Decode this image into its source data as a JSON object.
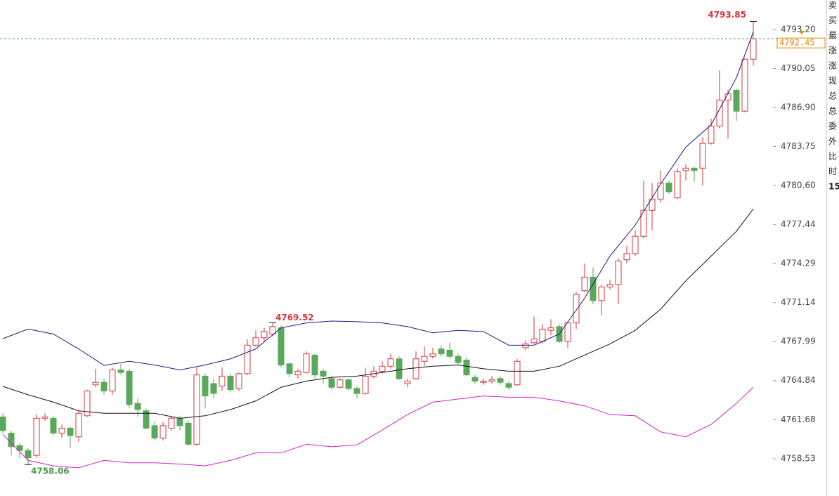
{
  "chart_data": {
    "type": "candlestick",
    "up_color": "#d9363e",
    "down_color": "#5aa85a",
    "open": [
      4761.9,
      4760.6,
      4759.6,
      4759.2,
      4758.8,
      4761.8,
      4761.8,
      4760.6,
      4761.0,
      4760.3,
      4762.0,
      4764.5,
      4764.7,
      4764.0,
      4765.7,
      4765.6,
      4763.0,
      4762.4,
      4761.2,
      4760.2,
      4761.0,
      4761.8,
      4761.4,
      4759.7,
      4765.2,
      4764.6,
      4764.4,
      4765.2,
      4764.2,
      4765.4,
      4767.7,
      4768.3,
      4768.6,
      4769.1,
      4766.2,
      4765.3,
      4765.5,
      4766.9,
      4765.6,
      4765.0,
      4764.3,
      4764.9,
      4764.2,
      4763.8,
      4765.2,
      4765.6,
      4766.0,
      4766.6,
      4764.6,
      4765.0,
      4766.4,
      4766.8,
      4767.4,
      4767.3,
      4766.8,
      4766.5,
      4765.1,
      4764.7,
      4764.8,
      4765.0,
      4764.6,
      4764.5,
      4767.5,
      4767.9,
      4768.0,
      4768.9,
      4769.2,
      4768.0,
      4769.5,
      4772.1,
      4773.2,
      4771.3,
      4772.4,
      4772.6,
      4774.6,
      4775.1,
      4776.5,
      4778.6,
      4779.5,
      4780.8,
      4779.6,
      4781.8,
      4782.0,
      4782.0,
      4784.0,
      4785.4,
      4787.5,
      4788.3,
      4786.6,
      4790.8
    ],
    "high": [
      4762.2,
      4760.8,
      4759.8,
      4759.4,
      4762.1,
      4762.2,
      4762.0,
      4761.3,
      4761.1,
      4762.4,
      4764.1,
      4765.8,
      4765.0,
      4765.9,
      4766.2,
      4765.8,
      4763.4,
      4762.6,
      4761.5,
      4761.5,
      4762.0,
      4762.0,
      4761.6,
      4765.9,
      4765.4,
      4765.0,
      4765.9,
      4765.4,
      4765.5,
      4768.2,
      4768.9,
      4769.1,
      4769.52,
      4769.3,
      4766.3,
      4765.8,
      4767.2,
      4767.0,
      4765.8,
      4765.2,
      4765.0,
      4765.0,
      4764.4,
      4765.9,
      4766.0,
      4766.4,
      4767.0,
      4766.8,
      4765.0,
      4767.2,
      4767.6,
      4767.5,
      4767.7,
      4767.9,
      4767.0,
      4766.7,
      4765.3,
      4765.0,
      4765.2,
      4765.2,
      4764.8,
      4766.6,
      4768.1,
      4770.0,
      4769.4,
      4769.8,
      4769.4,
      4769.6,
      4772.0,
      4774.3,
      4774.0,
      4772.6,
      4773.0,
      4774.7,
      4775.7,
      4777.0,
      4781.0,
      4780.8,
      4781.8,
      4781.0,
      4782.0,
      4782.3,
      4782.1,
      4784.5,
      4786.0,
      4789.9,
      4788.3,
      4788.4,
      4790.9,
      4793.85
    ],
    "low": [
      4760.6,
      4758.8,
      4758.6,
      4758.06,
      4758.6,
      4761.6,
      4760.4,
      4760.2,
      4759.4,
      4759.9,
      4761.9,
      4764.3,
      4763.7,
      4763.7,
      4765.3,
      4762.6,
      4761.9,
      4760.9,
      4760.0,
      4760.0,
      4760.8,
      4760.8,
      4759.6,
      4759.6,
      4762.6,
      4763.4,
      4764.0,
      4763.9,
      4764.0,
      4765.3,
      4767.6,
      4768.0,
      4768.4,
      4765.9,
      4765.1,
      4765.0,
      4765.4,
      4765.0,
      4764.6,
      4764.1,
      4764.2,
      4764.0,
      4763.4,
      4763.7,
      4765.0,
      4765.4,
      4765.8,
      4764.9,
      4764.3,
      4764.9,
      4766.0,
      4766.6,
      4766.8,
      4766.6,
      4766.1,
      4765.2,
      4764.6,
      4764.5,
      4764.6,
      4764.5,
      4764.1,
      4764.4,
      4767.3,
      4767.8,
      4767.8,
      4768.5,
      4767.9,
      4767.5,
      4769.0,
      4772.0,
      4771.0,
      4770.1,
      4772.2,
      4771.0,
      4774.3,
      4774.9,
      4776.3,
      4777.0,
      4779.2,
      4779.9,
      4779.5,
      4781.0,
      4780.9,
      4780.6,
      4783.9,
      4785.2,
      4784.4,
      4785.8,
      4786.5,
      4790.3
    ],
    "close": [
      4760.8,
      4759.5,
      4759.2,
      4758.6,
      4761.8,
      4761.9,
      4760.6,
      4761.0,
      4760.4,
      4762.2,
      4764.0,
      4764.7,
      4764.0,
      4765.7,
      4765.5,
      4762.9,
      4762.5,
      4761.0,
      4760.2,
      4761.2,
      4761.8,
      4761.2,
      4759.7,
      4765.3,
      4763.6,
      4763.8,
      4765.2,
      4764.1,
      4765.4,
      4767.7,
      4768.3,
      4768.8,
      4769.2,
      4766.1,
      4765.4,
      4765.6,
      4767.0,
      4765.3,
      4765.2,
      4764.3,
      4764.9,
      4764.2,
      4763.8,
      4765.2,
      4765.6,
      4766.0,
      4766.6,
      4765.0,
      4764.8,
      4766.6,
      4766.8,
      4767.0,
      4767.0,
      4766.8,
      4766.3,
      4765.3,
      4764.8,
      4764.8,
      4764.9,
      4764.7,
      4764.3,
      4766.4,
      4767.8,
      4768.2,
      4769.0,
      4769.1,
      4768.0,
      4769.5,
      4771.8,
      4773.2,
      4771.3,
      4772.4,
      4772.6,
      4774.5,
      4775.1,
      4776.5,
      4778.6,
      4779.5,
      4780.8,
      4780.1,
      4781.7,
      4782.0,
      4781.8,
      4784.0,
      4785.4,
      4787.5,
      4788.0,
      4786.6,
      4790.8,
      4792.45
    ],
    "lines": [
      {
        "color": "#1a1a7a",
        "x": [
          0,
          3,
          6,
          9,
          12,
          15,
          18,
          21,
          24,
          27,
          30,
          33,
          36,
          39,
          42,
          45,
          48,
          51,
          54,
          57,
          60,
          63,
          66,
          69,
          72,
          75,
          78,
          81,
          84,
          87,
          89
        ],
        "values": [
          4768.23,
          4769.0,
          4768.6,
          4767.4,
          4766.07,
          4766.4,
          4766.1,
          4765.7,
          4766.1,
          4766.6,
          4767.4,
          4769.1,
          4769.5,
          4769.65,
          4769.6,
          4769.5,
          4769.2,
          4768.7,
          4768.9,
          4768.8,
          4767.7,
          4767.7,
          4768.6,
          4771.5,
          4774.9,
          4777.4,
          4780.7,
          4783.7,
          4785.5,
          4789.3,
          4793.0
        ]
      },
      {
        "color": "#111111",
        "x": [
          0,
          3,
          6,
          9,
          12,
          15,
          18,
          21,
          24,
          27,
          30,
          33,
          36,
          39,
          42,
          45,
          48,
          51,
          54,
          57,
          60,
          63,
          66,
          69,
          72,
          75,
          78,
          81,
          84,
          87,
          89
        ],
        "values": [
          4764.37,
          4763.7,
          4763.1,
          4762.4,
          4762.2,
          4762.2,
          4762.2,
          4761.8,
          4762.0,
          4762.5,
          4763.2,
          4764.3,
          4764.8,
          4765.1,
          4765.2,
          4765.5,
          4765.8,
          4766.0,
          4766.1,
          4765.8,
          4765.6,
          4765.6,
          4766.0,
          4766.9,
          4767.8,
          4768.9,
          4770.6,
          4772.9,
          4774.9,
          4776.9,
          4778.7
        ]
      },
      {
        "color": "#d21fd2",
        "x": [
          0,
          3,
          6,
          9,
          12,
          15,
          18,
          21,
          24,
          27,
          30,
          33,
          36,
          39,
          42,
          45,
          48,
          51,
          54,
          57,
          60,
          63,
          66,
          69,
          72,
          75,
          78,
          81,
          84,
          87,
          89
        ],
        "values": [
          4760.5,
          4758.4,
          4757.95,
          4757.8,
          4758.4,
          4758.2,
          4758.2,
          4758.1,
          4757.95,
          4758.4,
          4759.0,
          4759.0,
          4759.7,
          4759.5,
          4759.65,
          4760.85,
          4762.1,
          4763.1,
          4763.35,
          4763.6,
          4763.5,
          4763.5,
          4763.2,
          4762.8,
          4762.1,
          4762.0,
          4760.7,
          4760.3,
          4761.3,
          4763.0,
          4764.3
        ]
      }
    ],
    "ylim": [
      4755.52,
      4795.58
    ],
    "yticks": [
      {
        "value": 4793.2,
        "label": "4793.20"
      },
      {
        "value": 4790.05,
        "label": "4790.05"
      },
      {
        "value": 4786.9,
        "label": "4786.90"
      },
      {
        "value": 4783.75,
        "label": "4783.75"
      },
      {
        "value": 4780.6,
        "label": "4780.60"
      },
      {
        "value": 4777.44,
        "label": "4777.44"
      },
      {
        "value": 4774.29,
        "label": "4774.29"
      },
      {
        "value": 4771.14,
        "label": "4771.14"
      },
      {
        "value": 4767.99,
        "label": "4767.99"
      },
      {
        "value": 4764.84,
        "label": "4764.84"
      },
      {
        "value": 4761.68,
        "label": "4761.68"
      },
      {
        "value": 4758.53,
        "label": "4758.53"
      }
    ],
    "last_price": 4792.45,
    "last_price_label": "4792.45",
    "last_price_color": "#e08a00",
    "annotations": [
      "4793.85",
      "4769.52",
      "4758.06"
    ],
    "side_panel": [
      "卖",
      "买",
      "最",
      "涨",
      "涨",
      "现",
      "总",
      "总",
      "委",
      "外",
      "比",
      "时",
      "15"
    ]
  }
}
